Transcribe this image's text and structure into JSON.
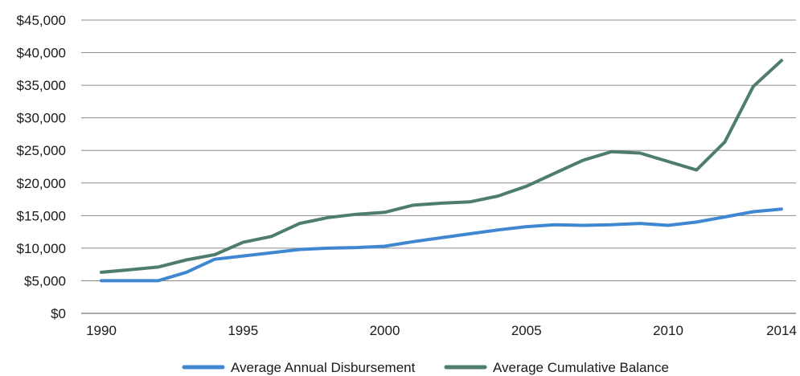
{
  "chart_data": {
    "type": "line",
    "title": "",
    "xlabel": "",
    "ylabel": "",
    "x": [
      1990,
      1991,
      1992,
      1993,
      1994,
      1995,
      1996,
      1997,
      1998,
      1999,
      2000,
      2001,
      2002,
      2003,
      2004,
      2005,
      2006,
      2007,
      2008,
      2009,
      2010,
      2011,
      2012,
      2013,
      2014
    ],
    "xlim": [
      1990,
      2014
    ],
    "ylim": [
      0,
      45000
    ],
    "x_ticks": [
      {
        "value": 1990,
        "label": "1990"
      },
      {
        "value": 1995,
        "label": "1995"
      },
      {
        "value": 2000,
        "label": "2000"
      },
      {
        "value": 2005,
        "label": "2005"
      },
      {
        "value": 2010,
        "label": "2010"
      },
      {
        "value": 2014,
        "label": "2014"
      }
    ],
    "y_ticks": [
      {
        "value": 0,
        "label": "$0"
      },
      {
        "value": 5000,
        "label": "$5,000"
      },
      {
        "value": 10000,
        "label": "$10,000"
      },
      {
        "value": 15000,
        "label": "$15,000"
      },
      {
        "value": 20000,
        "label": "$20,000"
      },
      {
        "value": 25000,
        "label": "$25,000"
      },
      {
        "value": 30000,
        "label": "$30,000"
      },
      {
        "value": 35000,
        "label": "$35,000"
      },
      {
        "value": 40000,
        "label": "$40,000"
      },
      {
        "value": 45000,
        "label": "$45,000"
      }
    ],
    "grid": "horizontal",
    "legend_position": "bottom",
    "series": [
      {
        "name": "Average Annual Disbursement",
        "color": "#3f87d1",
        "values": [
          5000,
          5000,
          5000,
          6300,
          8300,
          8800,
          9300,
          9800,
          10000,
          10100,
          10300,
          11000,
          11600,
          12200,
          12800,
          13300,
          13600,
          13500,
          13600,
          13800,
          13500,
          14000,
          14800,
          15600,
          16000
        ]
      },
      {
        "name": "Average Cumulative Balance",
        "color": "#4e7d6a",
        "values": [
          6300,
          6700,
          7100,
          8200,
          9000,
          10900,
          11800,
          13800,
          14700,
          15200,
          15500,
          16600,
          16900,
          17100,
          18000,
          19500,
          21500,
          23500,
          24800,
          24600,
          23300,
          22000,
          26300,
          34800,
          38800
        ]
      }
    ]
  }
}
